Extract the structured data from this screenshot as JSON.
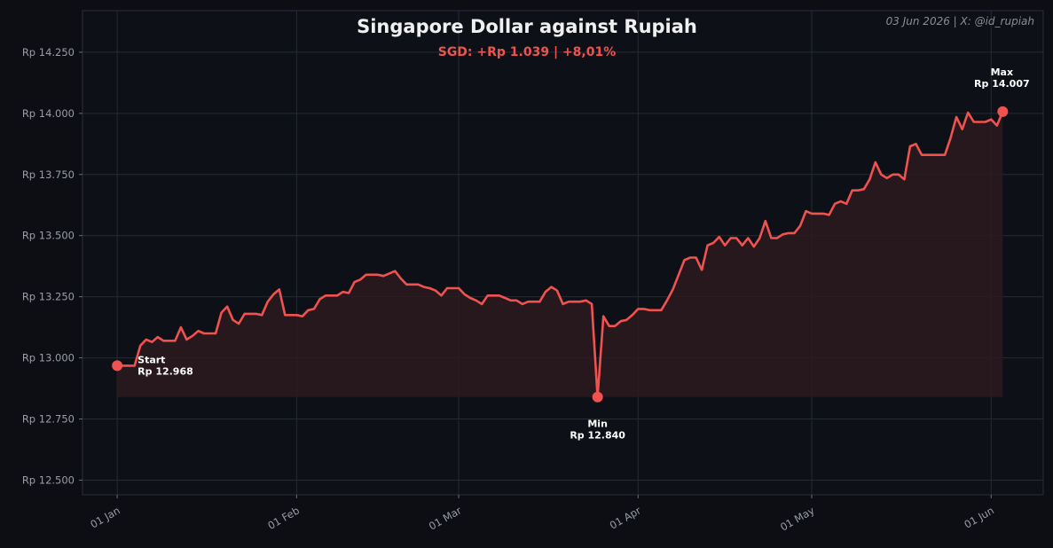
{
  "header": {
    "title": "Singapore Dollar against Rupiah",
    "subtitle": "SGD: +Rp 1.039 | +8,01%",
    "credit": "03 Jun 2026 | X: @id_rupiah"
  },
  "colors": {
    "background": "#0c0e14",
    "plot_background": "#0d1017",
    "grid": "#262a33",
    "line": "#f0524f",
    "fill": "#2c1a1f",
    "text": "#f0f0f0",
    "muted": "#9a9da6"
  },
  "chart_data": {
    "type": "line",
    "title": "Singapore Dollar against Rupiah",
    "subtitle": "SGD: +Rp 1.039 | +8,01%",
    "xlabel": "",
    "ylabel": "",
    "ylim": [
      12440,
      14420
    ],
    "x_range": [
      "2025-12-26",
      "2026-06-10"
    ],
    "y_ticks": [
      12500,
      12750,
      13000,
      13250,
      13500,
      13750,
      14000,
      14250
    ],
    "y_tick_labels": [
      "Rp 12.500",
      "Rp 12.750",
      "Rp 13.000",
      "Rp 13.250",
      "Rp 13.500",
      "Rp 13.750",
      "Rp 14.000",
      "Rp 14.250"
    ],
    "x_ticks": [
      "2026-01-01",
      "2026-02-01",
      "2026-03-01",
      "2026-04-01",
      "2026-05-01",
      "2026-06-01"
    ],
    "x_tick_labels": [
      "01 Jan",
      "01 Feb",
      "01 Mar",
      "01 Apr",
      "01 May",
      "01 Jun"
    ],
    "grid": true,
    "fill_baseline": 12840,
    "series": [
      {
        "x": [
          "2026-01-01",
          "2026-01-02",
          "2026-01-03",
          "2026-01-04",
          "2026-01-05",
          "2026-01-06",
          "2026-01-07",
          "2026-01-08",
          "2026-01-09",
          "2026-01-10",
          "2026-01-11",
          "2026-01-12",
          "2026-01-13",
          "2026-01-14",
          "2026-01-15",
          "2026-01-16",
          "2026-01-17",
          "2026-01-18",
          "2026-01-19",
          "2026-01-20",
          "2026-01-21",
          "2026-01-22",
          "2026-01-23",
          "2026-01-24",
          "2026-01-25",
          "2026-01-26",
          "2026-01-27",
          "2026-01-28",
          "2026-01-29",
          "2026-01-30",
          "2026-01-31",
          "2026-02-01",
          "2026-02-02",
          "2026-02-03",
          "2026-02-04",
          "2026-02-05",
          "2026-02-06",
          "2026-02-07",
          "2026-02-08",
          "2026-02-09",
          "2026-02-10",
          "2026-02-11",
          "2026-02-12",
          "2026-02-13",
          "2026-02-14",
          "2026-02-15",
          "2026-02-16",
          "2026-02-17",
          "2026-02-18",
          "2026-02-19",
          "2026-02-20",
          "2026-02-21",
          "2026-02-22",
          "2026-02-23",
          "2026-02-24",
          "2026-02-25",
          "2026-02-26",
          "2026-02-27",
          "2026-02-28",
          "2026-03-01",
          "2026-03-02",
          "2026-03-03",
          "2026-03-04",
          "2026-03-05",
          "2026-03-06",
          "2026-03-07",
          "2026-03-08",
          "2026-03-09",
          "2026-03-10",
          "2026-03-11",
          "2026-03-12",
          "2026-03-13",
          "2026-03-14",
          "2026-03-15",
          "2026-03-16",
          "2026-03-17",
          "2026-03-18",
          "2026-03-19",
          "2026-03-20",
          "2026-03-21",
          "2026-03-22",
          "2026-03-23",
          "2026-03-24",
          "2026-03-25",
          "2026-03-26",
          "2026-03-27",
          "2026-03-28",
          "2026-03-29",
          "2026-03-30",
          "2026-03-31",
          "2026-04-01",
          "2026-04-02",
          "2026-04-03",
          "2026-04-04",
          "2026-04-05",
          "2026-04-06",
          "2026-04-07",
          "2026-04-08",
          "2026-04-09",
          "2026-04-10",
          "2026-04-11",
          "2026-04-12",
          "2026-04-13",
          "2026-04-14",
          "2026-04-15",
          "2026-04-16",
          "2026-04-17",
          "2026-04-18",
          "2026-04-19",
          "2026-04-20",
          "2026-04-21",
          "2026-04-22",
          "2026-04-23",
          "2026-04-24",
          "2026-04-25",
          "2026-04-26",
          "2026-04-27",
          "2026-04-28",
          "2026-04-29",
          "2026-04-30",
          "2026-05-01",
          "2026-05-02",
          "2026-05-03",
          "2026-05-04",
          "2026-05-05",
          "2026-05-06",
          "2026-05-07",
          "2026-05-08",
          "2026-05-09",
          "2026-05-10",
          "2026-05-11",
          "2026-05-12",
          "2026-05-13",
          "2026-05-14",
          "2026-05-15",
          "2026-05-16",
          "2026-05-17",
          "2026-05-18",
          "2026-05-19",
          "2026-05-20",
          "2026-05-21",
          "2026-05-22",
          "2026-05-23",
          "2026-05-24",
          "2026-05-25",
          "2026-05-26",
          "2026-05-27",
          "2026-05-28",
          "2026-05-29",
          "2026-05-30",
          "2026-05-31",
          "2026-06-01",
          "2026-06-02",
          "2026-06-03"
        ],
        "values": [
          12968,
          12968,
          12968,
          12968,
          13050,
          13075,
          13065,
          13085,
          13070,
          13070,
          13070,
          13125,
          13075,
          13090,
          13110,
          13100,
          13100,
          13100,
          13185,
          13210,
          13155,
          13140,
          13180,
          13180,
          13180,
          13175,
          13230,
          13260,
          13280,
          13175,
          13175,
          13175,
          13170,
          13195,
          13200,
          13240,
          13255,
          13255,
          13255,
          13270,
          13265,
          13310,
          13320,
          13340,
          13340,
          13340,
          13335,
          13345,
          13355,
          13325,
          13300,
          13300,
          13300,
          13290,
          13285,
          13275,
          13255,
          13285,
          13285,
          13285,
          13260,
          13245,
          13235,
          13220,
          13255,
          13255,
          13255,
          13245,
          13235,
          13235,
          13220,
          13230,
          13230,
          13230,
          13270,
          13290,
          13275,
          13220,
          13230,
          13230,
          13230,
          13235,
          13220,
          12840,
          13170,
          13130,
          13130,
          13150,
          13155,
          13175,
          13200,
          13200,
          13195,
          13195,
          13195,
          13235,
          13280,
          13340,
          13400,
          13410,
          13410,
          13360,
          13460,
          13470,
          13495,
          13460,
          13490,
          13490,
          13460,
          13490,
          13455,
          13490,
          13560,
          13490,
          13490,
          13505,
          13510,
          13510,
          13540,
          13600,
          13590,
          13590,
          13590,
          13585,
          13630,
          13640,
          13630,
          13685,
          13685,
          13690,
          13730,
          13800,
          13750,
          13735,
          13750,
          13750,
          13730,
          13865,
          13875,
          13830,
          13830,
          13830,
          13830,
          13830,
          13900,
          13985,
          13935,
          14003,
          13965,
          13965,
          13965,
          13975,
          13950,
          14007
        ]
      }
    ],
    "annotations": [
      {
        "id": "start",
        "label": "Start",
        "value_label": "Rp 12.968",
        "x": "2026-01-01",
        "y": 12968
      },
      {
        "id": "min",
        "label": "Min",
        "value_label": "Rp 12.840",
        "x": "2026-03-25",
        "y": 12840
      },
      {
        "id": "max",
        "label": "Max",
        "value_label": "Rp 14.007",
        "x": "2026-06-03",
        "y": 14007
      }
    ]
  }
}
